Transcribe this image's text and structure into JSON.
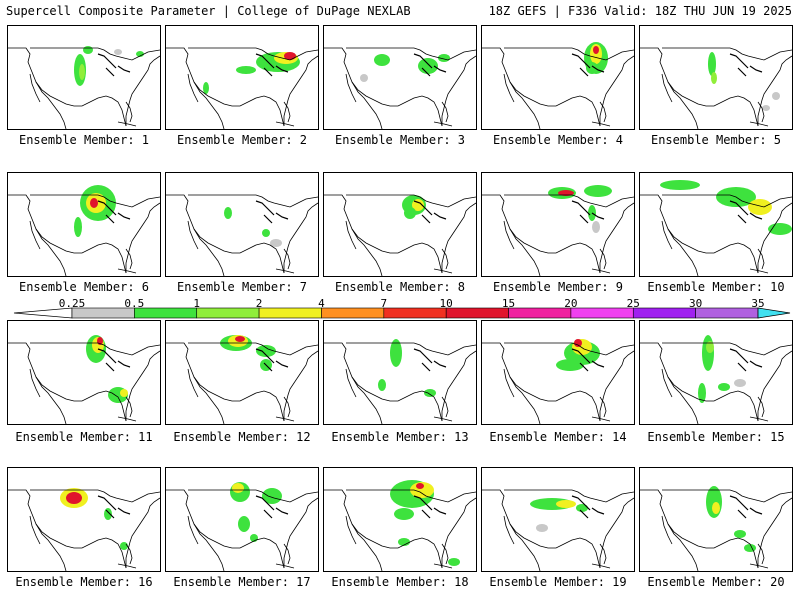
{
  "header": {
    "title": "Supercell Composite Parameter | College of DuPage NEXLAB",
    "run_info": "18Z GEFS | F336 Valid: 18Z THU JUN 19 2025"
  },
  "colorbar": {
    "levels": [
      "0.25",
      "0.5",
      "1",
      "2",
      "4",
      "7",
      "10",
      "15",
      "20",
      "25",
      "30",
      "35"
    ],
    "colors": [
      "#c8c8c8",
      "#3ee23e",
      "#90ee3a",
      "#f0f020",
      "#ff9020",
      "#f03020",
      "#e0142c",
      "#f020a0",
      "#f040f0",
      "#a020f0",
      "#b060e0",
      "#40e0f0"
    ]
  },
  "members": [
    {
      "label": "Ensemble Member: 1"
    },
    {
      "label": "Ensemble Member: 2"
    },
    {
      "label": "Ensemble Member: 3"
    },
    {
      "label": "Ensemble Member: 4"
    },
    {
      "label": "Ensemble Member: 5"
    },
    {
      "label": "Ensemble Member: 6"
    },
    {
      "label": "Ensemble Member: 7"
    },
    {
      "label": "Ensemble Member: 8"
    },
    {
      "label": "Ensemble Member: 9"
    },
    {
      "label": "Ensemble Member: 10"
    },
    {
      "label": "Ensemble Member: 11"
    },
    {
      "label": "Ensemble Member: 12"
    },
    {
      "label": "Ensemble Member: 13"
    },
    {
      "label": "Ensemble Member: 14"
    },
    {
      "label": "Ensemble Member: 15"
    },
    {
      "label": "Ensemble Member: 16"
    },
    {
      "label": "Ensemble Member: 17"
    },
    {
      "label": "Ensemble Member: 18"
    },
    {
      "label": "Ensemble Member: 19"
    },
    {
      "label": "Ensemble Member: 20"
    }
  ]
}
